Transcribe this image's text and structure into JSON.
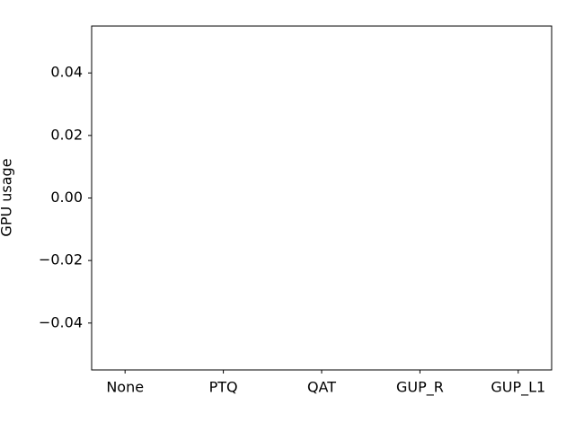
{
  "chart_data": {
    "type": "bar",
    "y_label": "GPU usage",
    "categories": [
      "None",
      "PTQ",
      "QAT",
      "GUP_R",
      "GUP_L1"
    ],
    "values": [
      null,
      null,
      null,
      null,
      null
    ],
    "color": "#1f77b4",
    "ylim": [
      -0.055,
      0.055
    ],
    "yticks": [
      {
        "value": -0.04,
        "label": "−0.04"
      },
      {
        "value": -0.02,
        "label": "−0.02"
      },
      {
        "value": 0,
        "label": "0.00"
      },
      0.02,
      0.04
    ],
    "grid": false
  }
}
